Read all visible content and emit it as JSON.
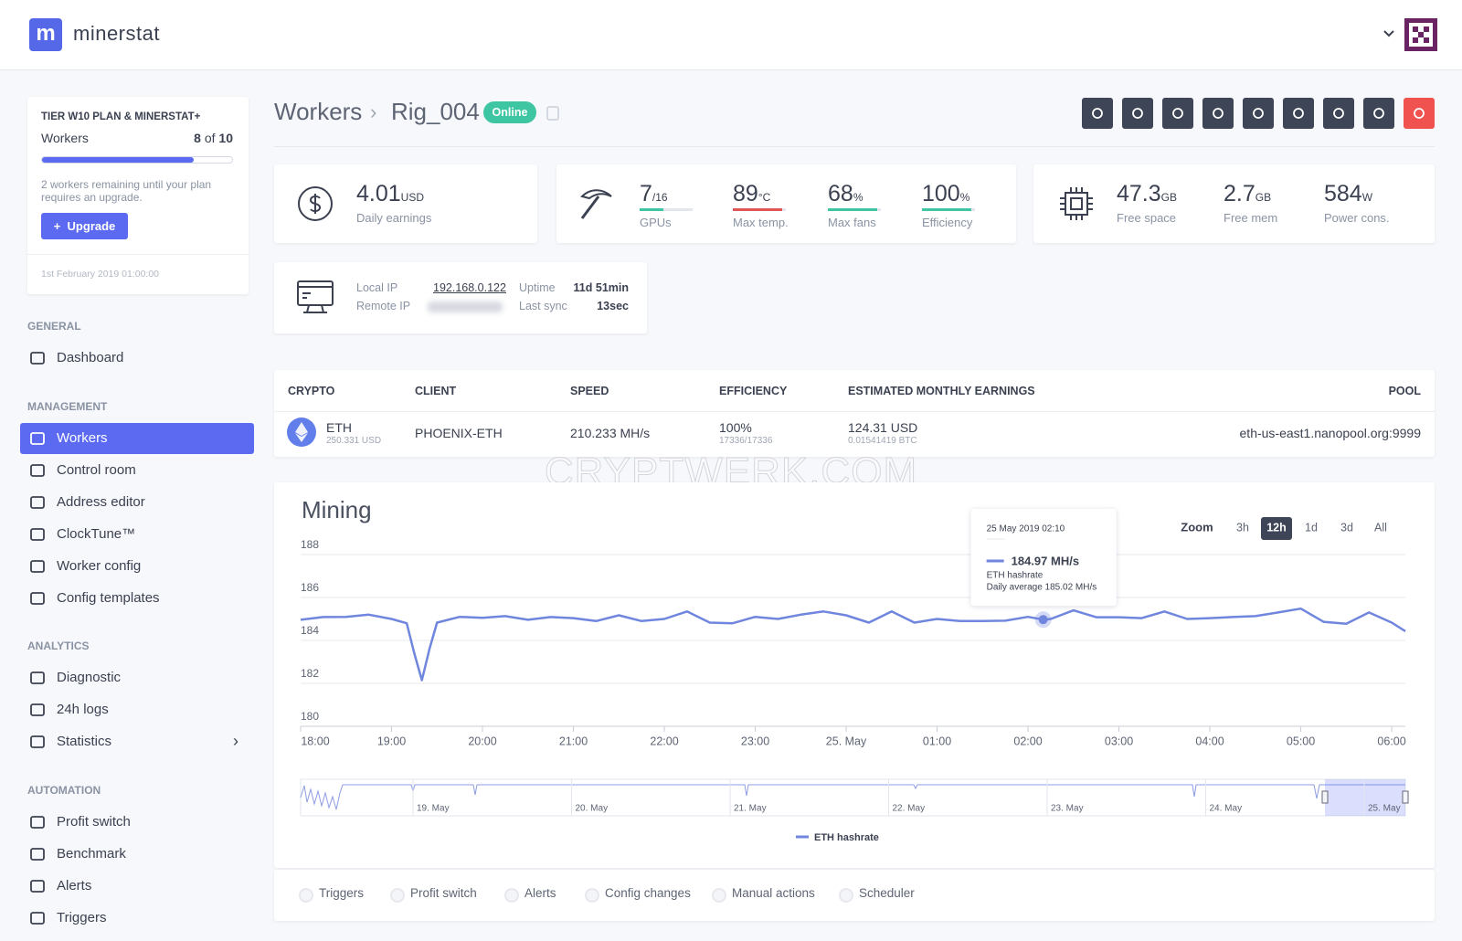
{
  "header": {
    "brand": "minerstat"
  },
  "sidebar": {
    "plan": {
      "title": "TIER W10 PLAN & MINERSTAT+",
      "workers_label": "Workers",
      "workers_used": 8,
      "of": "of",
      "workers_limit": 10,
      "message": "2 workers remaining until your plan requires an upgrade.",
      "upgrade": "Upgrade",
      "date": "1st February 2019 01:00:00"
    },
    "sections": [
      {
        "title": "GENERAL",
        "items": [
          "Dashboard"
        ]
      },
      {
        "title": "MANAGEMENT",
        "items": [
          "Workers",
          "Control room",
          "Address editor",
          "ClockTune™",
          "Worker config",
          "Config templates"
        ]
      },
      {
        "title": "ANALYTICS",
        "items": [
          "Diagnostic",
          "24h logs",
          "Statistics"
        ]
      },
      {
        "title": "AUTOMATION",
        "items": [
          "Profit switch",
          "Benchmark",
          "Alerts",
          "Triggers"
        ]
      }
    ]
  },
  "worker": {
    "breadcrumb": "Workers",
    "name": "Rig_004",
    "status": "Online",
    "stats": [
      {
        "value": "4.01",
        "unit": "USD",
        "label": "Daily earnings"
      },
      {
        "value": "7",
        "unit": "/16",
        "label": "GPUs"
      },
      {
        "value": "89",
        "unit": "°C",
        "label": "Max temp."
      },
      {
        "value": "68",
        "unit": "%",
        "label": "Max fans"
      },
      {
        "value": "100",
        "unit": "%",
        "label": "Efficiency"
      },
      {
        "value": "47.3",
        "unit": "GB",
        "label": "Free space"
      },
      {
        "value": "2.7",
        "unit": "GB",
        "label": "Free mem"
      },
      {
        "value": "584",
        "unit": "W",
        "label": "Power cons."
      }
    ],
    "info": {
      "local_ip_label": "Local IP",
      "local_ip": "192.168.0.122",
      "remote_ip_label": "Remote IP",
      "uptime_label": "Uptime",
      "uptime": "11d 51min",
      "last_sync_label": "Last sync",
      "last_sync": "13sec"
    }
  },
  "table": {
    "headers": [
      "CRYPTO",
      "CLIENT",
      "SPEED",
      "EFFICIENCY",
      "ESTIMATED MONTHLY EARNINGS",
      "POOL"
    ],
    "rows": [
      {
        "crypto": "ETH",
        "crypto_price": "250.331 USD",
        "client": "PHOENIX-ETH",
        "speed": "210.233 MH/s",
        "efficiency": "100%",
        "shares": "17336/17336",
        "earnings": "124.31 USD",
        "earnings_btc": "0.01541419 BTC",
        "pool": "eth-us-east1.nanopool.org:9999"
      }
    ]
  },
  "watermark": "CRYPTWERK.COM",
  "chart_data": {
    "type": "line",
    "title": "Mining",
    "x": [
      "18:00",
      "18:15",
      "18:30",
      "18:45",
      "19:00",
      "19:10",
      "19:15",
      "19:20",
      "19:25",
      "19:30",
      "19:45",
      "20:00",
      "20:15",
      "20:30",
      "20:45",
      "21:00",
      "21:15",
      "21:30",
      "21:45",
      "22:00",
      "22:15",
      "22:30",
      "22:45",
      "23:00",
      "23:15",
      "23:30",
      "23:45",
      "00:00",
      "00:15",
      "00:30",
      "00:45",
      "01:00",
      "01:15",
      "01:30",
      "01:45",
      "02:00",
      "02:10",
      "02:15",
      "02:30",
      "02:45",
      "03:00",
      "03:15",
      "03:30",
      "03:45",
      "04:00",
      "04:15",
      "04:30",
      "04:45",
      "05:00",
      "05:15",
      "05:30",
      "05:45",
      "06:00",
      "06:09"
    ],
    "series": [
      {
        "name": "ETH hashrate",
        "color": "#7086de",
        "values": [
          184.96,
          185.09,
          185.1,
          185.2,
          185.0,
          184.8,
          183.4,
          182.15,
          183.6,
          184.83,
          185.1,
          185.05,
          185.13,
          184.96,
          185.09,
          185.04,
          184.9,
          185.17,
          184.9,
          185.0,
          185.35,
          184.83,
          184.8,
          185.1,
          185.0,
          185.2,
          185.35,
          185.17,
          184.83,
          185.35,
          184.83,
          185.0,
          184.9,
          184.9,
          184.92,
          185.1,
          184.97,
          185.0,
          185.4,
          185.08,
          185.08,
          185.04,
          185.35,
          185.0,
          185.04,
          185.09,
          185.13,
          185.3,
          185.48,
          184.87,
          184.78,
          185.3,
          184.83,
          184.43
        ]
      }
    ],
    "xlim": [
      "18:00",
      "06:09"
    ],
    "xticks": [
      "18:00",
      "19:00",
      "20:00",
      "21:00",
      "22:00",
      "23:00",
      {
        "value": "00:00",
        "label": "25. May"
      },
      "01:00",
      "02:00",
      "03:00",
      "04:00",
      "05:00",
      "06:00"
    ],
    "ylim": [
      180,
      188
    ],
    "yticks": [
      180,
      182,
      184,
      186,
      188
    ],
    "grid": true,
    "zoom_label": "Zoom",
    "zoom_options": [
      "3h",
      "12h",
      "1d",
      "3d",
      "All"
    ],
    "zoom_selected": "12h",
    "navigator_labels": [
      "19. May",
      "20. May",
      "21. May",
      "22. May",
      "23. May",
      "24. May",
      "25. May"
    ],
    "tooltip": {
      "title": "25 May 2019 02:10",
      "value": 184.97,
      "value_label": "184.97 MH/s",
      "series": "ETH hashrate",
      "note": "Daily average 185.02 MH/s"
    }
  },
  "filters": [
    "Triggers",
    "Profit switch",
    "Alerts",
    "Config changes",
    "Manual actions",
    "Scheduler"
  ]
}
